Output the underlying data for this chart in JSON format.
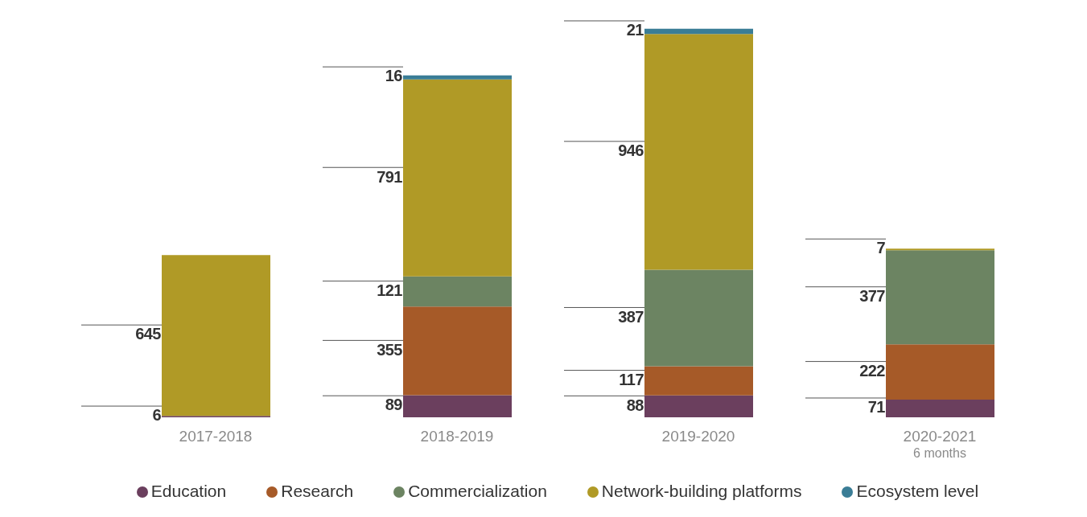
{
  "chart_data": {
    "type": "bar",
    "stacked": true,
    "data_labels": true,
    "legend": "bottom",
    "categories": [
      "2017-2018",
      "2018-2019",
      "2019-2020",
      "2020-2021\n6 months"
    ],
    "series": [
      {
        "name": "Education",
        "color": "#6b3f5e",
        "values": [
          6,
          89,
          88,
          71
        ]
      },
      {
        "name": "Research",
        "color": "#a65a28",
        "values": [
          null,
          355,
          117,
          222
        ]
      },
      {
        "name": "Commercialization",
        "color": "#6c8462",
        "values": [
          null,
          121,
          387,
          377
        ]
      },
      {
        "name": "Network-building platforms",
        "color": "#b09a26",
        "values": [
          645,
          791,
          946,
          7
        ]
      },
      {
        "name": "Ecosystem level",
        "color": "#3a7d96",
        "values": [
          null,
          16,
          21,
          null
        ]
      }
    ]
  }
}
